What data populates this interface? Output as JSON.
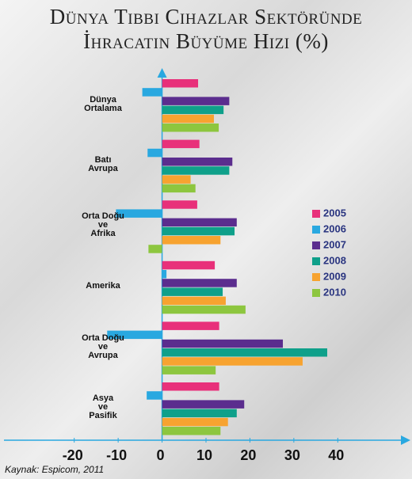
{
  "chart_data": {
    "type": "hbar",
    "title": "Dünya Tıbbi Cihazlar Sektöründe\nİhracatın Büyüme Hızı (%)",
    "source": "Kaynak: Espicom, 2011",
    "categories": [
      "Dünya\nOrtalama",
      "Batı\nAvrupa",
      "Orta Doğu\nve\nAfrika",
      "Amerika",
      "Orta Doğu\nve\nAvrupa",
      "Asya\nve\nPasifik"
    ],
    "series": [
      {
        "name": "2005",
        "color": "#e8307a",
        "values": [
          8.2,
          8.5,
          8,
          12,
          13,
          13
        ]
      },
      {
        "name": "2006",
        "color": "#29a8e0",
        "values": [
          -4.5,
          -3.3,
          -10.5,
          1,
          -12.5,
          -3.5
        ]
      },
      {
        "name": "2007",
        "color": "#5b2d8e",
        "values": [
          15.3,
          16,
          17,
          17,
          27.5,
          18.7
        ]
      },
      {
        "name": "2008",
        "color": "#0fa08a",
        "values": [
          14,
          15.3,
          16.5,
          13.8,
          37.6,
          17
        ]
      },
      {
        "name": "2009",
        "color": "#f7a330",
        "values": [
          11.8,
          6.5,
          13.3,
          14.5,
          32,
          15
        ]
      },
      {
        "name": "2010",
        "color": "#8dc63f",
        "values": [
          12.9,
          7.6,
          -3.1,
          19,
          12.2,
          13.3
        ]
      }
    ],
    "xlim": [
      -36,
      56
    ],
    "xticks": [
      -20,
      -10,
      0,
      10,
      20,
      30,
      40
    ],
    "legend": "right"
  }
}
